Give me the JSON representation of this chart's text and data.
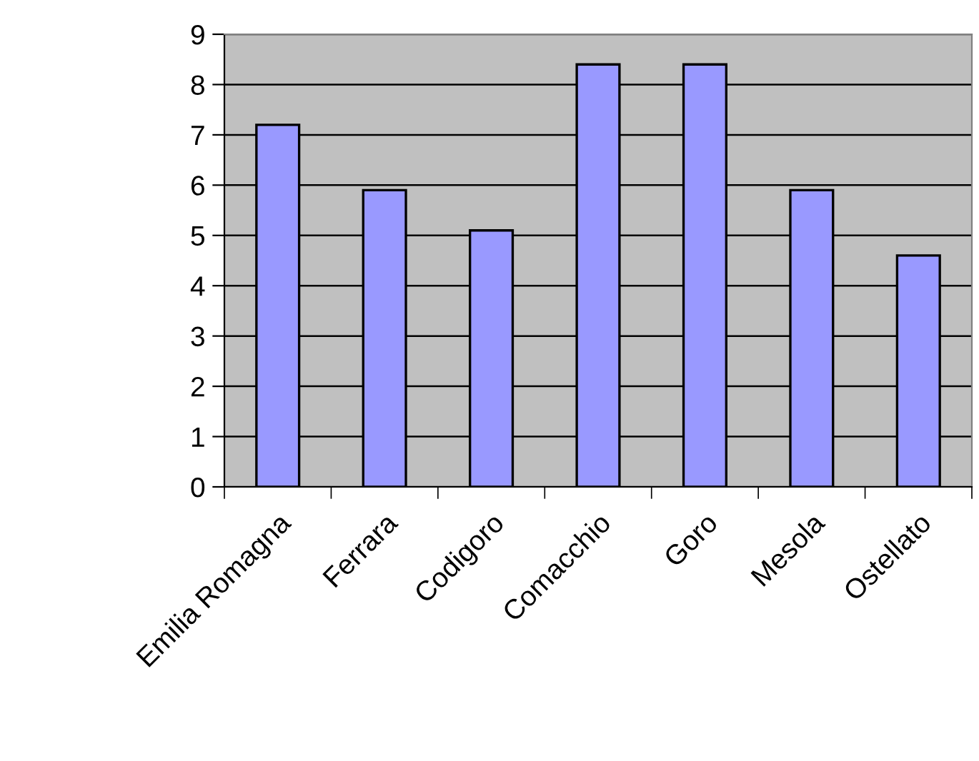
{
  "chart_data": {
    "type": "bar",
    "categories": [
      "Emilia Romagna",
      "Ferrara",
      "Codigoro",
      "Comacchio",
      "Goro",
      "Mesola",
      "Ostellato"
    ],
    "values": [
      7.2,
      5.9,
      5.1,
      8.4,
      8.4,
      5.9,
      4.6
    ],
    "color": "#9999ff",
    "ylim": [
      0,
      9
    ],
    "yticks": [
      0,
      1,
      2,
      3,
      4,
      5,
      6,
      7,
      8,
      9
    ],
    "grid": "y"
  }
}
